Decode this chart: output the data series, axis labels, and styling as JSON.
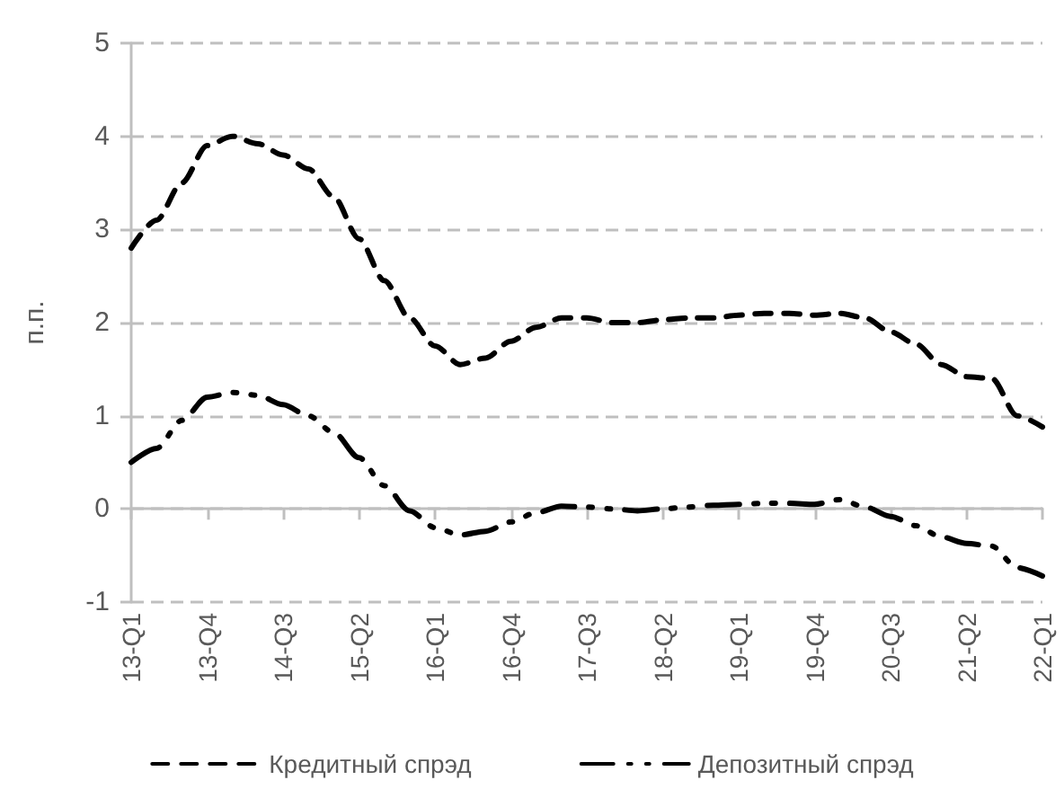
{
  "chart_data": {
    "type": "line",
    "ylabel": "п.п.",
    "categories": [
      "13-Q1",
      null,
      null,
      "13-Q4",
      null,
      null,
      "14-Q3",
      null,
      null,
      "15-Q2",
      null,
      null,
      "16-Q1",
      null,
      null,
      "16-Q4",
      null,
      null,
      "17-Q3",
      null,
      null,
      "18-Q2",
      null,
      null,
      "19-Q1",
      null,
      null,
      "19-Q4",
      null,
      null,
      "20-Q3",
      null,
      null,
      "21-Q2",
      null,
      null,
      "22-Q1"
    ],
    "series": [
      {
        "name": "Кредитный спрэд",
        "color": "#000000",
        "line_style": "dashed",
        "values": [
          2.8,
          3.1,
          3.5,
          3.9,
          4.0,
          3.92,
          3.8,
          3.65,
          3.35,
          2.9,
          2.45,
          2.05,
          1.75,
          1.55,
          1.62,
          1.8,
          1.95,
          2.05,
          2.05,
          2.0,
          2.0,
          2.03,
          2.05,
          2.05,
          2.08,
          2.1,
          2.1,
          2.08,
          2.1,
          2.05,
          1.9,
          1.77,
          1.55,
          1.42,
          1.4,
          1.0,
          0.88
        ]
      },
      {
        "name": "Депозитный спрэд",
        "color": "#000000",
        "line_style": "dashdot",
        "values": [
          0.5,
          0.65,
          0.95,
          1.2,
          1.25,
          1.22,
          1.12,
          1.0,
          0.82,
          0.55,
          0.25,
          -0.02,
          -0.2,
          -0.28,
          -0.24,
          -0.14,
          -0.04,
          0.03,
          0.02,
          0.0,
          -0.02,
          0.0,
          0.02,
          0.04,
          0.05,
          0.06,
          0.06,
          0.05,
          0.1,
          0.02,
          -0.08,
          -0.18,
          -0.3,
          -0.37,
          -0.4,
          -0.63,
          -0.72
        ]
      }
    ],
    "ylim": [
      -1,
      5
    ],
    "yticks": [
      -1,
      0,
      1,
      2,
      3,
      4,
      5
    ],
    "grid": "y",
    "legend": "bottom",
    "marker": "none"
  }
}
